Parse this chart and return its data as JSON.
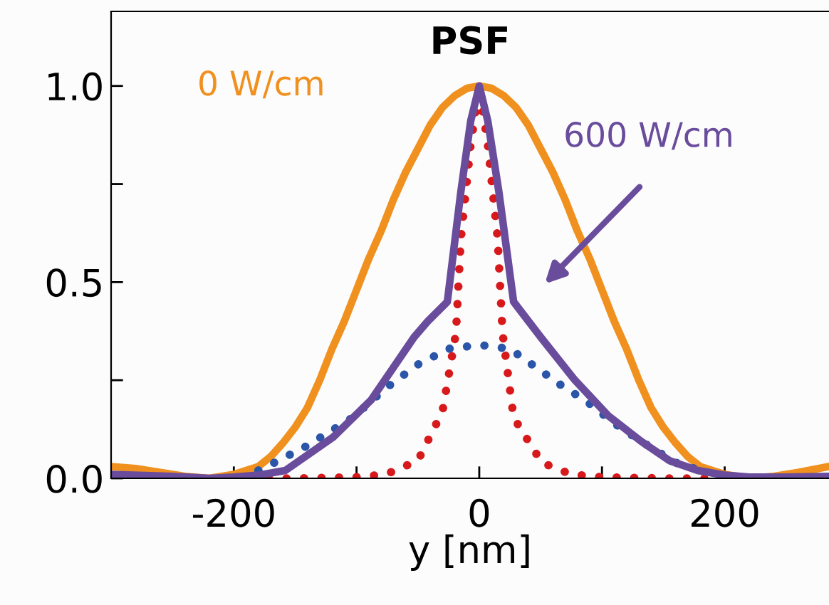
{
  "chart_data": {
    "type": "line",
    "title": "PSF",
    "xlabel": "y [nm]",
    "xlim": [
      -300,
      285
    ],
    "ylim": [
      0,
      1.19
    ],
    "xticks": [
      -200,
      {
        "value": -100,
        "label": null
      },
      0,
      {
        "value": 100,
        "label": null
      },
      200
    ],
    "yticks": [
      {
        "value": 0.0,
        "label": "0.0"
      },
      {
        "value": 0.25,
        "label": null
      },
      {
        "value": 0.5,
        "label": "0.5"
      },
      {
        "value": 0.75,
        "label": null
      },
      {
        "value": 1.0,
        "label": "1.0"
      }
    ],
    "grid": false,
    "legend": false,
    "series": [
      {
        "name": "0 W/cm",
        "color": "#f0901e",
        "line_style": "solid",
        "x": [
          -300,
          -280,
          -260,
          -240,
          -220,
          -200,
          -190,
          -180,
          -170,
          -160,
          -150,
          -140,
          -130,
          -120,
          -110,
          -100,
          -90,
          -80,
          -70,
          -60,
          -50,
          -40,
          -30,
          -20,
          -10,
          0,
          10,
          20,
          30,
          40,
          50,
          60,
          70,
          80,
          90,
          100,
          110,
          120,
          130,
          140,
          150,
          160,
          170,
          180,
          190,
          200,
          220,
          240,
          260,
          285
        ],
        "values": [
          0.03,
          0.025,
          0.015,
          0.005,
          0,
          0.01,
          0.02,
          0.03,
          0.055,
          0.09,
          0.13,
          0.18,
          0.25,
          0.33,
          0.4,
          0.48,
          0.56,
          0.63,
          0.71,
          0.78,
          0.84,
          0.9,
          0.945,
          0.975,
          0.994,
          1.0,
          0.994,
          0.975,
          0.945,
          0.9,
          0.84,
          0.78,
          0.71,
          0.63,
          0.56,
          0.48,
          0.4,
          0.33,
          0.25,
          0.18,
          0.13,
          0.09,
          0.055,
          0.03,
          0.02,
          0.01,
          0,
          0.005,
          0.015,
          0.03
        ]
      },
      {
        "color": "#2a55a8",
        "line_style": "dotted",
        "x": [
          -180,
          -170,
          -142,
          -103,
          -76,
          -50,
          -25,
          0,
          25,
          43,
          70,
          86,
          110,
          132,
          160,
          180
        ],
        "values": [
          0.02,
          0.035,
          0.08,
          0.155,
          0.23,
          0.29,
          0.33,
          0.34,
          0.33,
          0.29,
          0.23,
          0.2,
          0.14,
          0.094,
          0.04,
          0.02
        ]
      },
      {
        "color": "#d7191c",
        "line_style": "dotted",
        "x": [
          -200,
          -150,
          -100,
          -76,
          -50,
          -30,
          -19,
          -15,
          -7,
          0,
          7,
          15,
          19,
          28,
          51,
          75,
          100,
          150,
          200
        ],
        "values": [
          0,
          0,
          0.003,
          0.01,
          0.045,
          0.17,
          0.37,
          0.61,
          0.85,
          1.0,
          0.85,
          0.61,
          0.37,
          0.155,
          0.04,
          0.01,
          0.003,
          0,
          0
        ]
      },
      {
        "name": "600 W/cm",
        "color": "#6a4c9c",
        "line_style": "solid",
        "x": [
          -300,
          -250,
          -220,
          -200,
          -180,
          -158,
          -119,
          -88,
          -53,
          -42,
          -26,
          -15,
          -7,
          0,
          7,
          16,
          28,
          50,
          78,
          105,
          132,
          155,
          178,
          200,
          220,
          250,
          285
        ],
        "values": [
          0.01,
          0.005,
          0,
          0.003,
          0.008,
          0.02,
          0.105,
          0.2,
          0.36,
          0.4,
          0.45,
          0.73,
          0.91,
          1.0,
          0.91,
          0.73,
          0.45,
          0.36,
          0.25,
          0.16,
          0.094,
          0.045,
          0.02,
          0.008,
          0.003,
          0.003,
          0.005
        ]
      }
    ]
  }
}
